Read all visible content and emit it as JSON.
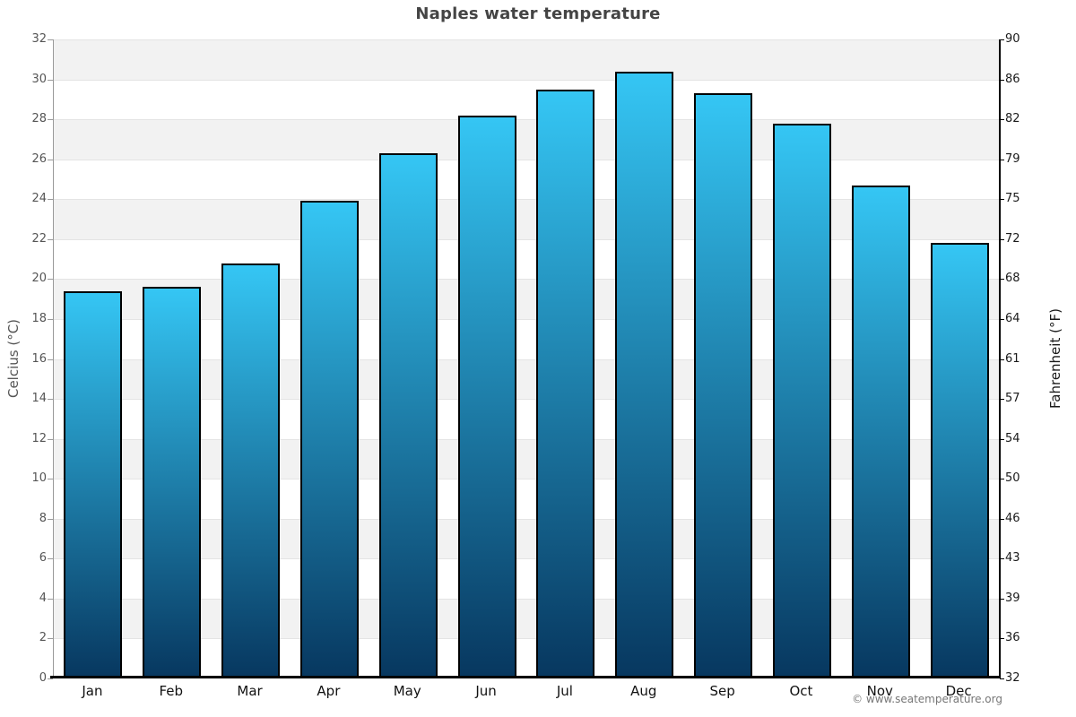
{
  "title": "Naples water temperature",
  "copyright": "© www.seatemperature.org",
  "chart_data": {
    "type": "bar",
    "title": "Naples water temperature",
    "categories": [
      "Jan",
      "Feb",
      "Mar",
      "Apr",
      "May",
      "Jun",
      "Jul",
      "Aug",
      "Sep",
      "Oct",
      "Nov",
      "Dec"
    ],
    "values": [
      19.4,
      19.6,
      20.8,
      23.9,
      26.3,
      28.2,
      29.5,
      30.4,
      29.3,
      27.8,
      24.7,
      21.8
    ],
    "unit": "°C",
    "ylabel_left": "Celcius (°C)",
    "ylabel_right": "Fahrenheit (°F)",
    "ylim": [
      0,
      32
    ],
    "yticks_celsius": [
      32,
      30,
      28,
      26,
      24,
      22,
      20,
      18,
      16,
      14,
      12,
      10,
      8,
      6,
      4,
      2,
      0
    ],
    "yticks_fahrenheit": [
      90,
      86,
      82,
      79,
      75,
      72,
      68,
      64,
      61,
      57,
      54,
      50,
      46,
      43,
      39,
      36,
      32
    ],
    "grid": "alternating horizontal bands every 2 °C with light gridlines",
    "legend": null,
    "colors": {
      "bar_gradient_top": "#35c6f4",
      "bar_gradient_bottom": "#07375f",
      "bar_border": "#000000",
      "band_shaded": "#f2f2f2",
      "band_plain": "#ffffff",
      "gridline": "#e4e4e4",
      "title_text": "#444444",
      "tick_text_left": "#555555",
      "tick_text_right": "#1a1a1a",
      "copyright_text": "#777777"
    }
  }
}
